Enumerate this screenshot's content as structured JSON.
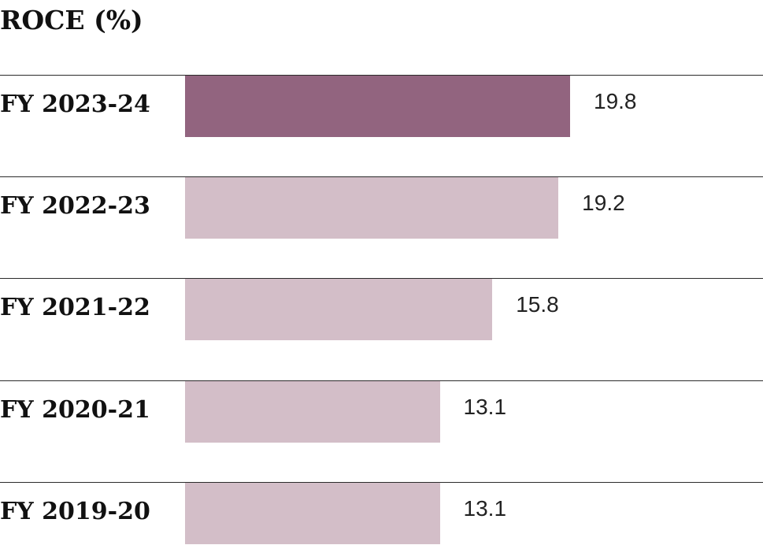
{
  "chart_data": {
    "type": "bar",
    "orientation": "horizontal",
    "title": "ROCE (%)",
    "categories": [
      "FY 2023-24",
      "FY 2022-23",
      "FY 2021-22",
      "FY 2020-21",
      "FY 2019-20"
    ],
    "values": [
      19.8,
      19.2,
      15.8,
      13.1,
      13.1
    ],
    "value_labels": [
      "19.8",
      "19.2",
      "15.8",
      "13.1",
      "13.1"
    ],
    "xlim": [
      0,
      20
    ],
    "grid": false,
    "legend": "none",
    "colors": {
      "highlight": "#92647f",
      "default": "#d3bec8"
    },
    "highlight_index": 0
  }
}
